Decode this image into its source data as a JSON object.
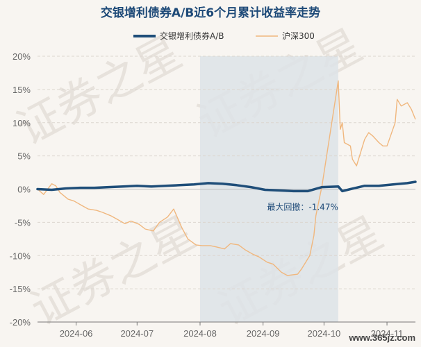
{
  "chart_data": {
    "type": "line",
    "title": "交银增利债券A/B近6个月累计收益率走势",
    "legend": {
      "position": "top-center"
    },
    "ylim": [
      -20,
      20
    ],
    "yticks": [
      20,
      15,
      10,
      5,
      0,
      -5,
      -10,
      -15,
      -20
    ],
    "ytick_labels": [
      "20%",
      "15%",
      "10%",
      "5%",
      "0%",
      "-5%",
      "-10%",
      "-15%",
      "-20%"
    ],
    "xlim": [
      "2024-05-13",
      "2024-11-15"
    ],
    "xticks": [
      "2024-06-01",
      "2024-07-01",
      "2024-08-01",
      "2024-09-01",
      "2024-10-01",
      "2024-11-01"
    ],
    "xtick_labels": [
      "2024-06",
      "2024-07",
      "2024-08",
      "2024-09",
      "2024-10",
      "2024-11"
    ],
    "grid": {
      "horizontal": true,
      "vertical": false
    },
    "colors": {
      "fund": "#1f4e79",
      "index": "#f0b77e",
      "band": "#dde3e8"
    },
    "drawdown": {
      "start": "2024-08-01",
      "end": "2024-10-08",
      "label": "最大回撤：-1.47%"
    },
    "series": [
      {
        "name": "交银增利债券A/B",
        "x": [
          "2024-05-13",
          "2024-05-20",
          "2024-05-27",
          "2024-06-03",
          "2024-06-10",
          "2024-06-17",
          "2024-06-24",
          "2024-07-01",
          "2024-07-08",
          "2024-07-15",
          "2024-07-22",
          "2024-07-29",
          "2024-08-05",
          "2024-08-12",
          "2024-08-19",
          "2024-08-26",
          "2024-09-02",
          "2024-09-09",
          "2024-09-16",
          "2024-09-23",
          "2024-09-30",
          "2024-10-08",
          "2024-10-10",
          "2024-10-14",
          "2024-10-21",
          "2024-10-28",
          "2024-11-04",
          "2024-11-11",
          "2024-11-15"
        ],
        "values": [
          0,
          -0.1,
          0.1,
          0.2,
          0.2,
          0.3,
          0.4,
          0.5,
          0.4,
          0.5,
          0.6,
          0.7,
          0.9,
          0.8,
          0.6,
          0.3,
          -0.1,
          -0.2,
          -0.3,
          -0.3,
          0.3,
          0.4,
          -0.3,
          0.0,
          0.5,
          0.5,
          0.7,
          0.9,
          1.1
        ]
      },
      {
        "name": "沪深300",
        "x": [
          "2024-05-13",
          "2024-05-16",
          "2024-05-20",
          "2024-05-22",
          "2024-05-24",
          "2024-05-28",
          "2024-05-31",
          "2024-06-04",
          "2024-06-07",
          "2024-06-11",
          "2024-06-14",
          "2024-06-18",
          "2024-06-21",
          "2024-06-25",
          "2024-06-28",
          "2024-07-02",
          "2024-07-05",
          "2024-07-09",
          "2024-07-12",
          "2024-07-16",
          "2024-07-19",
          "2024-07-23",
          "2024-07-26",
          "2024-07-30",
          "2024-08-02",
          "2024-08-06",
          "2024-08-09",
          "2024-08-13",
          "2024-08-16",
          "2024-08-20",
          "2024-08-23",
          "2024-08-27",
          "2024-08-30",
          "2024-09-03",
          "2024-09-06",
          "2024-09-10",
          "2024-09-13",
          "2024-09-18",
          "2024-09-20",
          "2024-09-24",
          "2024-09-26",
          "2024-09-27",
          "2024-09-30",
          "2024-10-08",
          "2024-10-09",
          "2024-10-10",
          "2024-10-11",
          "2024-10-14",
          "2024-10-15",
          "2024-10-17",
          "2024-10-21",
          "2024-10-23",
          "2024-10-25",
          "2024-10-28",
          "2024-10-30",
          "2024-11-01",
          "2024-11-05",
          "2024-11-06",
          "2024-11-08",
          "2024-11-11",
          "2024-11-13",
          "2024-11-15"
        ],
        "values": [
          0,
          -0.8,
          0.8,
          0.5,
          -0.5,
          -1.5,
          -1.8,
          -2.5,
          -3.0,
          -3.2,
          -3.5,
          -4.0,
          -4.5,
          -5.2,
          -4.8,
          -5.3,
          -6.0,
          -6.3,
          -5.0,
          -4.2,
          -3.0,
          -5.8,
          -7.5,
          -8.4,
          -8.5,
          -8.5,
          -8.7,
          -9.0,
          -8.2,
          -8.4,
          -9.1,
          -9.8,
          -10.2,
          -11.0,
          -11.3,
          -12.5,
          -13.0,
          -12.8,
          -12.0,
          -10.0,
          -7.0,
          -4.0,
          0.5,
          16.3,
          9.0,
          10.0,
          7.0,
          6.5,
          4.5,
          3.5,
          7.5,
          8.5,
          8.0,
          7.0,
          6.5,
          6.5,
          10.0,
          13.5,
          12.5,
          13.0,
          12.0,
          10.5
        ]
      }
    ]
  },
  "watermark": "证券之星",
  "site": "www.365jz.com"
}
